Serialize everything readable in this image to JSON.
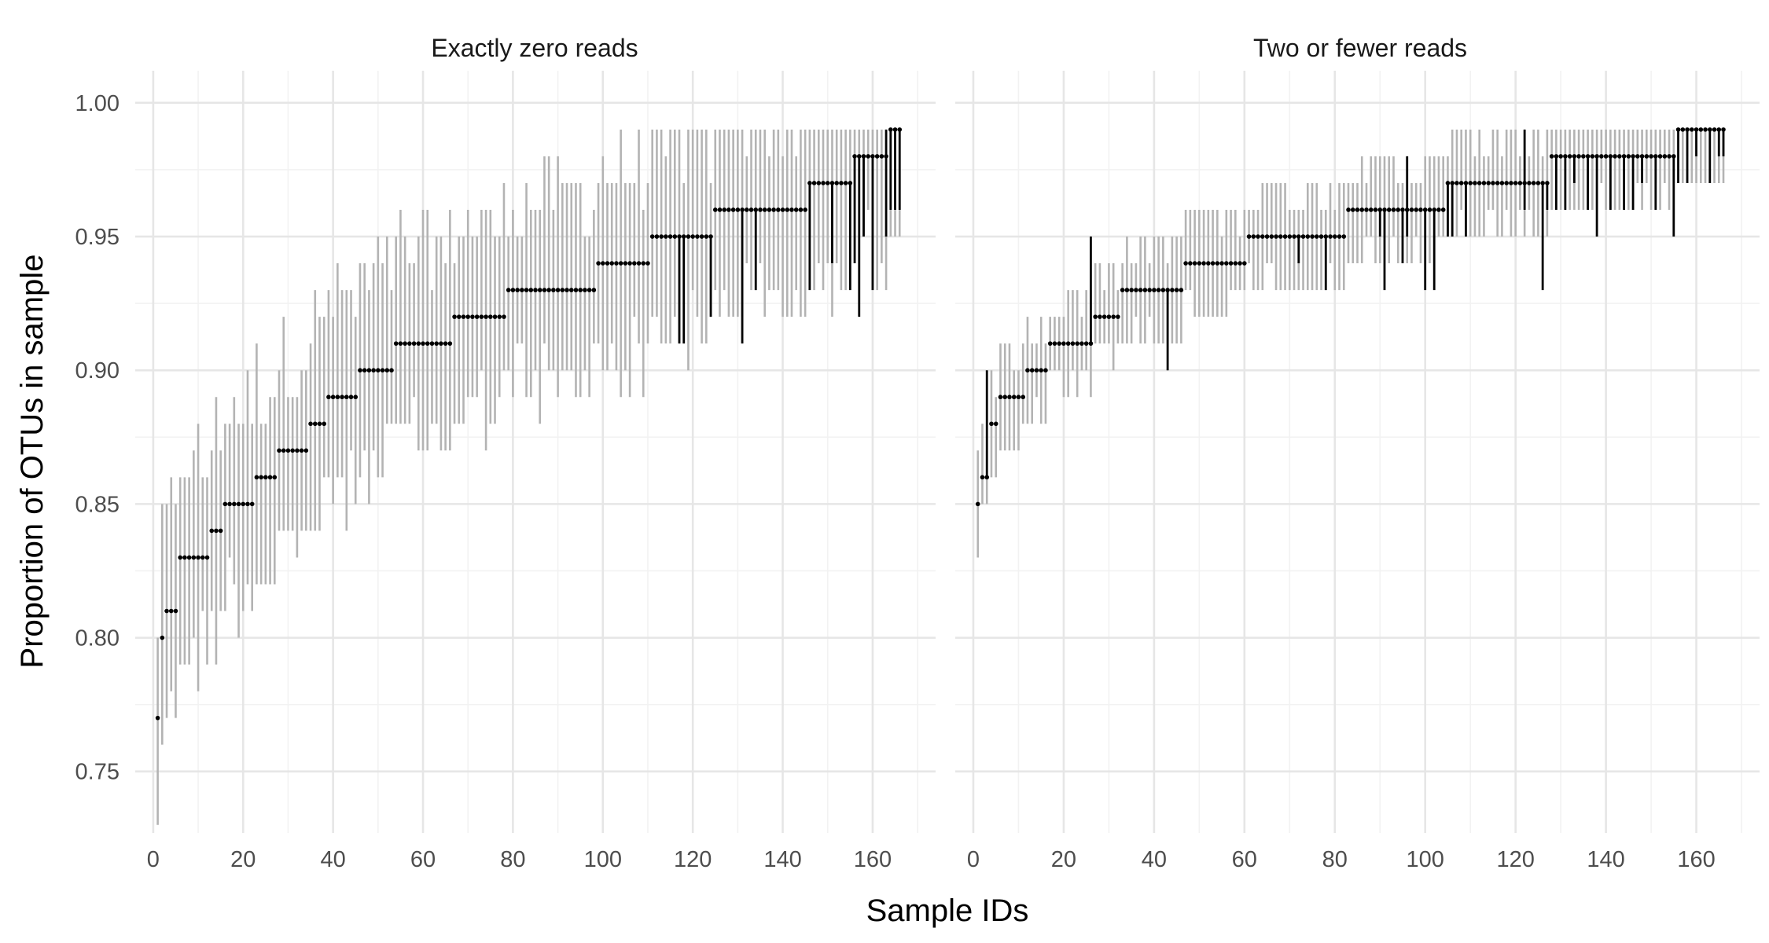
{
  "chart_data": {
    "type": "errorbar-faceted",
    "xlabel": "Sample IDs",
    "ylabel": "Proportion of OTUs in sample",
    "xlim": [
      -4,
      174
    ],
    "ylim": [
      0.727,
      1.012
    ],
    "x_ticks": [
      0,
      20,
      40,
      60,
      80,
      100,
      120,
      140,
      160
    ],
    "y_ticks": [
      0.75,
      0.8,
      0.85,
      0.9,
      0.95,
      1.0
    ],
    "y_tick_labels": [
      "0.75",
      "0.80",
      "0.85",
      "0.90",
      "0.95",
      "1.00"
    ],
    "grid": true,
    "n_samples": 166,
    "colors": {
      "observed": "#000000",
      "interval": "#b3b3b3",
      "grid_major": "#e6e6e6",
      "grid_minor": "#f2f2f2"
    },
    "panels": [
      {
        "title": "Exactly zero reads",
        "observed_levels": [
          {
            "x": [
              1,
              1
            ],
            "value": 0.77
          },
          {
            "x": [
              2,
              2
            ],
            "value": 0.8
          },
          {
            "x": [
              3,
              5
            ],
            "value": 0.81
          },
          {
            "x": [
              6,
              12
            ],
            "value": 0.83
          },
          {
            "x": [
              13,
              15
            ],
            "value": 0.84
          },
          {
            "x": [
              16,
              22
            ],
            "value": 0.85
          },
          {
            "x": [
              23,
              27
            ],
            "value": 0.86
          },
          {
            "x": [
              28,
              34
            ],
            "value": 0.87
          },
          {
            "x": [
              35,
              38
            ],
            "value": 0.88
          },
          {
            "x": [
              39,
              45
            ],
            "value": 0.89
          },
          {
            "x": [
              46,
              53
            ],
            "value": 0.9
          },
          {
            "x": [
              54,
              66
            ],
            "value": 0.91
          },
          {
            "x": [
              67,
              78
            ],
            "value": 0.92
          },
          {
            "x": [
              79,
              98
            ],
            "value": 0.93
          },
          {
            "x": [
              99,
              110
            ],
            "value": 0.94
          },
          {
            "x": [
              111,
              124
            ],
            "value": 0.95
          },
          {
            "x": [
              125,
              145
            ],
            "value": 0.96
          },
          {
            "x": [
              146,
              155
            ],
            "value": 0.97
          },
          {
            "x": [
              156,
              163
            ],
            "value": 0.98
          },
          {
            "x": [
              164,
              166
            ],
            "value": 0.99
          }
        ],
        "interval_spread": {
          "lower": 0.04,
          "upper": 0.04
        },
        "highlight_segments": [
          {
            "x": 117,
            "low": 0.91,
            "high": 0.95
          },
          {
            "x": 118,
            "low": 0.91,
            "high": 0.95
          },
          {
            "x": 124,
            "low": 0.92,
            "high": 0.95
          },
          {
            "x": 131,
            "low": 0.91,
            "high": 0.96
          },
          {
            "x": 134,
            "low": 0.93,
            "high": 0.96
          },
          {
            "x": 146,
            "low": 0.93,
            "high": 0.97
          },
          {
            "x": 151,
            "low": 0.94,
            "high": 0.97
          },
          {
            "x": 155,
            "low": 0.93,
            "high": 0.97
          },
          {
            "x": 156,
            "low": 0.94,
            "high": 0.98
          },
          {
            "x": 157,
            "low": 0.92,
            "high": 0.98
          },
          {
            "x": 158,
            "low": 0.95,
            "high": 0.98
          },
          {
            "x": 160,
            "low": 0.93,
            "high": 0.98
          },
          {
            "x": 163,
            "low": 0.95,
            "high": 0.99
          },
          {
            "x": 164,
            "low": 0.96,
            "high": 0.99
          },
          {
            "x": 165,
            "low": 0.96,
            "high": 0.99
          },
          {
            "x": 166,
            "low": 0.96,
            "high": 0.99
          }
        ]
      },
      {
        "title": "Two or fewer reads",
        "observed_levels": [
          {
            "x": [
              1,
              1
            ],
            "value": 0.85
          },
          {
            "x": [
              2,
              3
            ],
            "value": 0.86
          },
          {
            "x": [
              4,
              5
            ],
            "value": 0.88
          },
          {
            "x": [
              6,
              11
            ],
            "value": 0.89
          },
          {
            "x": [
              12,
              16
            ],
            "value": 0.9
          },
          {
            "x": [
              17,
              26
            ],
            "value": 0.91
          },
          {
            "x": [
              27,
              32
            ],
            "value": 0.92
          },
          {
            "x": [
              33,
              46
            ],
            "value": 0.93
          },
          {
            "x": [
              47,
              60
            ],
            "value": 0.94
          },
          {
            "x": [
              61,
              82
            ],
            "value": 0.95
          },
          {
            "x": [
              83,
              104
            ],
            "value": 0.96
          },
          {
            "x": [
              105,
              127
            ],
            "value": 0.97
          },
          {
            "x": [
              128,
              155
            ],
            "value": 0.98
          },
          {
            "x": [
              156,
              166
            ],
            "value": 0.99
          }
        ],
        "interval_spread": {
          "lower": 0.02,
          "upper": 0.02
        },
        "highlight_segments": [
          {
            "x": 3,
            "low": 0.86,
            "high": 0.9
          },
          {
            "x": 26,
            "low": 0.91,
            "high": 0.95
          },
          {
            "x": 43,
            "low": 0.9,
            "high": 0.93
          },
          {
            "x": 72,
            "low": 0.94,
            "high": 0.95
          },
          {
            "x": 78,
            "low": 0.93,
            "high": 0.95
          },
          {
            "x": 90,
            "low": 0.95,
            "high": 0.96
          },
          {
            "x": 91,
            "low": 0.93,
            "high": 0.96
          },
          {
            "x": 95,
            "low": 0.94,
            "high": 0.96
          },
          {
            "x": 96,
            "low": 0.95,
            "high": 0.98
          },
          {
            "x": 100,
            "low": 0.93,
            "high": 0.96
          },
          {
            "x": 102,
            "low": 0.93,
            "high": 0.96
          },
          {
            "x": 105,
            "low": 0.95,
            "high": 0.97
          },
          {
            "x": 106,
            "low": 0.95,
            "high": 0.97
          },
          {
            "x": 109,
            "low": 0.95,
            "high": 0.97
          },
          {
            "x": 122,
            "low": 0.96,
            "high": 0.99
          },
          {
            "x": 126,
            "low": 0.93,
            "high": 0.97
          },
          {
            "x": 127,
            "low": 0.96,
            "high": 0.97
          },
          {
            "x": 129,
            "low": 0.96,
            "high": 0.98
          },
          {
            "x": 131,
            "low": 0.96,
            "high": 0.98
          },
          {
            "x": 133,
            "low": 0.97,
            "high": 0.98
          },
          {
            "x": 136,
            "low": 0.96,
            "high": 0.98
          },
          {
            "x": 138,
            "low": 0.95,
            "high": 0.98
          },
          {
            "x": 141,
            "low": 0.96,
            "high": 0.98
          },
          {
            "x": 144,
            "low": 0.96,
            "high": 0.98
          },
          {
            "x": 146,
            "low": 0.96,
            "high": 0.98
          },
          {
            "x": 148,
            "low": 0.97,
            "high": 0.98
          },
          {
            "x": 151,
            "low": 0.96,
            "high": 0.98
          },
          {
            "x": 155,
            "low": 0.95,
            "high": 0.98
          },
          {
            "x": 156,
            "low": 0.97,
            "high": 0.99
          },
          {
            "x": 158,
            "low": 0.97,
            "high": 0.99
          },
          {
            "x": 160,
            "low": 0.98,
            "high": 0.99
          },
          {
            "x": 163,
            "low": 0.97,
            "high": 0.99
          },
          {
            "x": 165,
            "low": 0.98,
            "high": 0.99
          },
          {
            "x": 166,
            "low": 0.98,
            "high": 0.99
          }
        ]
      }
    ]
  }
}
